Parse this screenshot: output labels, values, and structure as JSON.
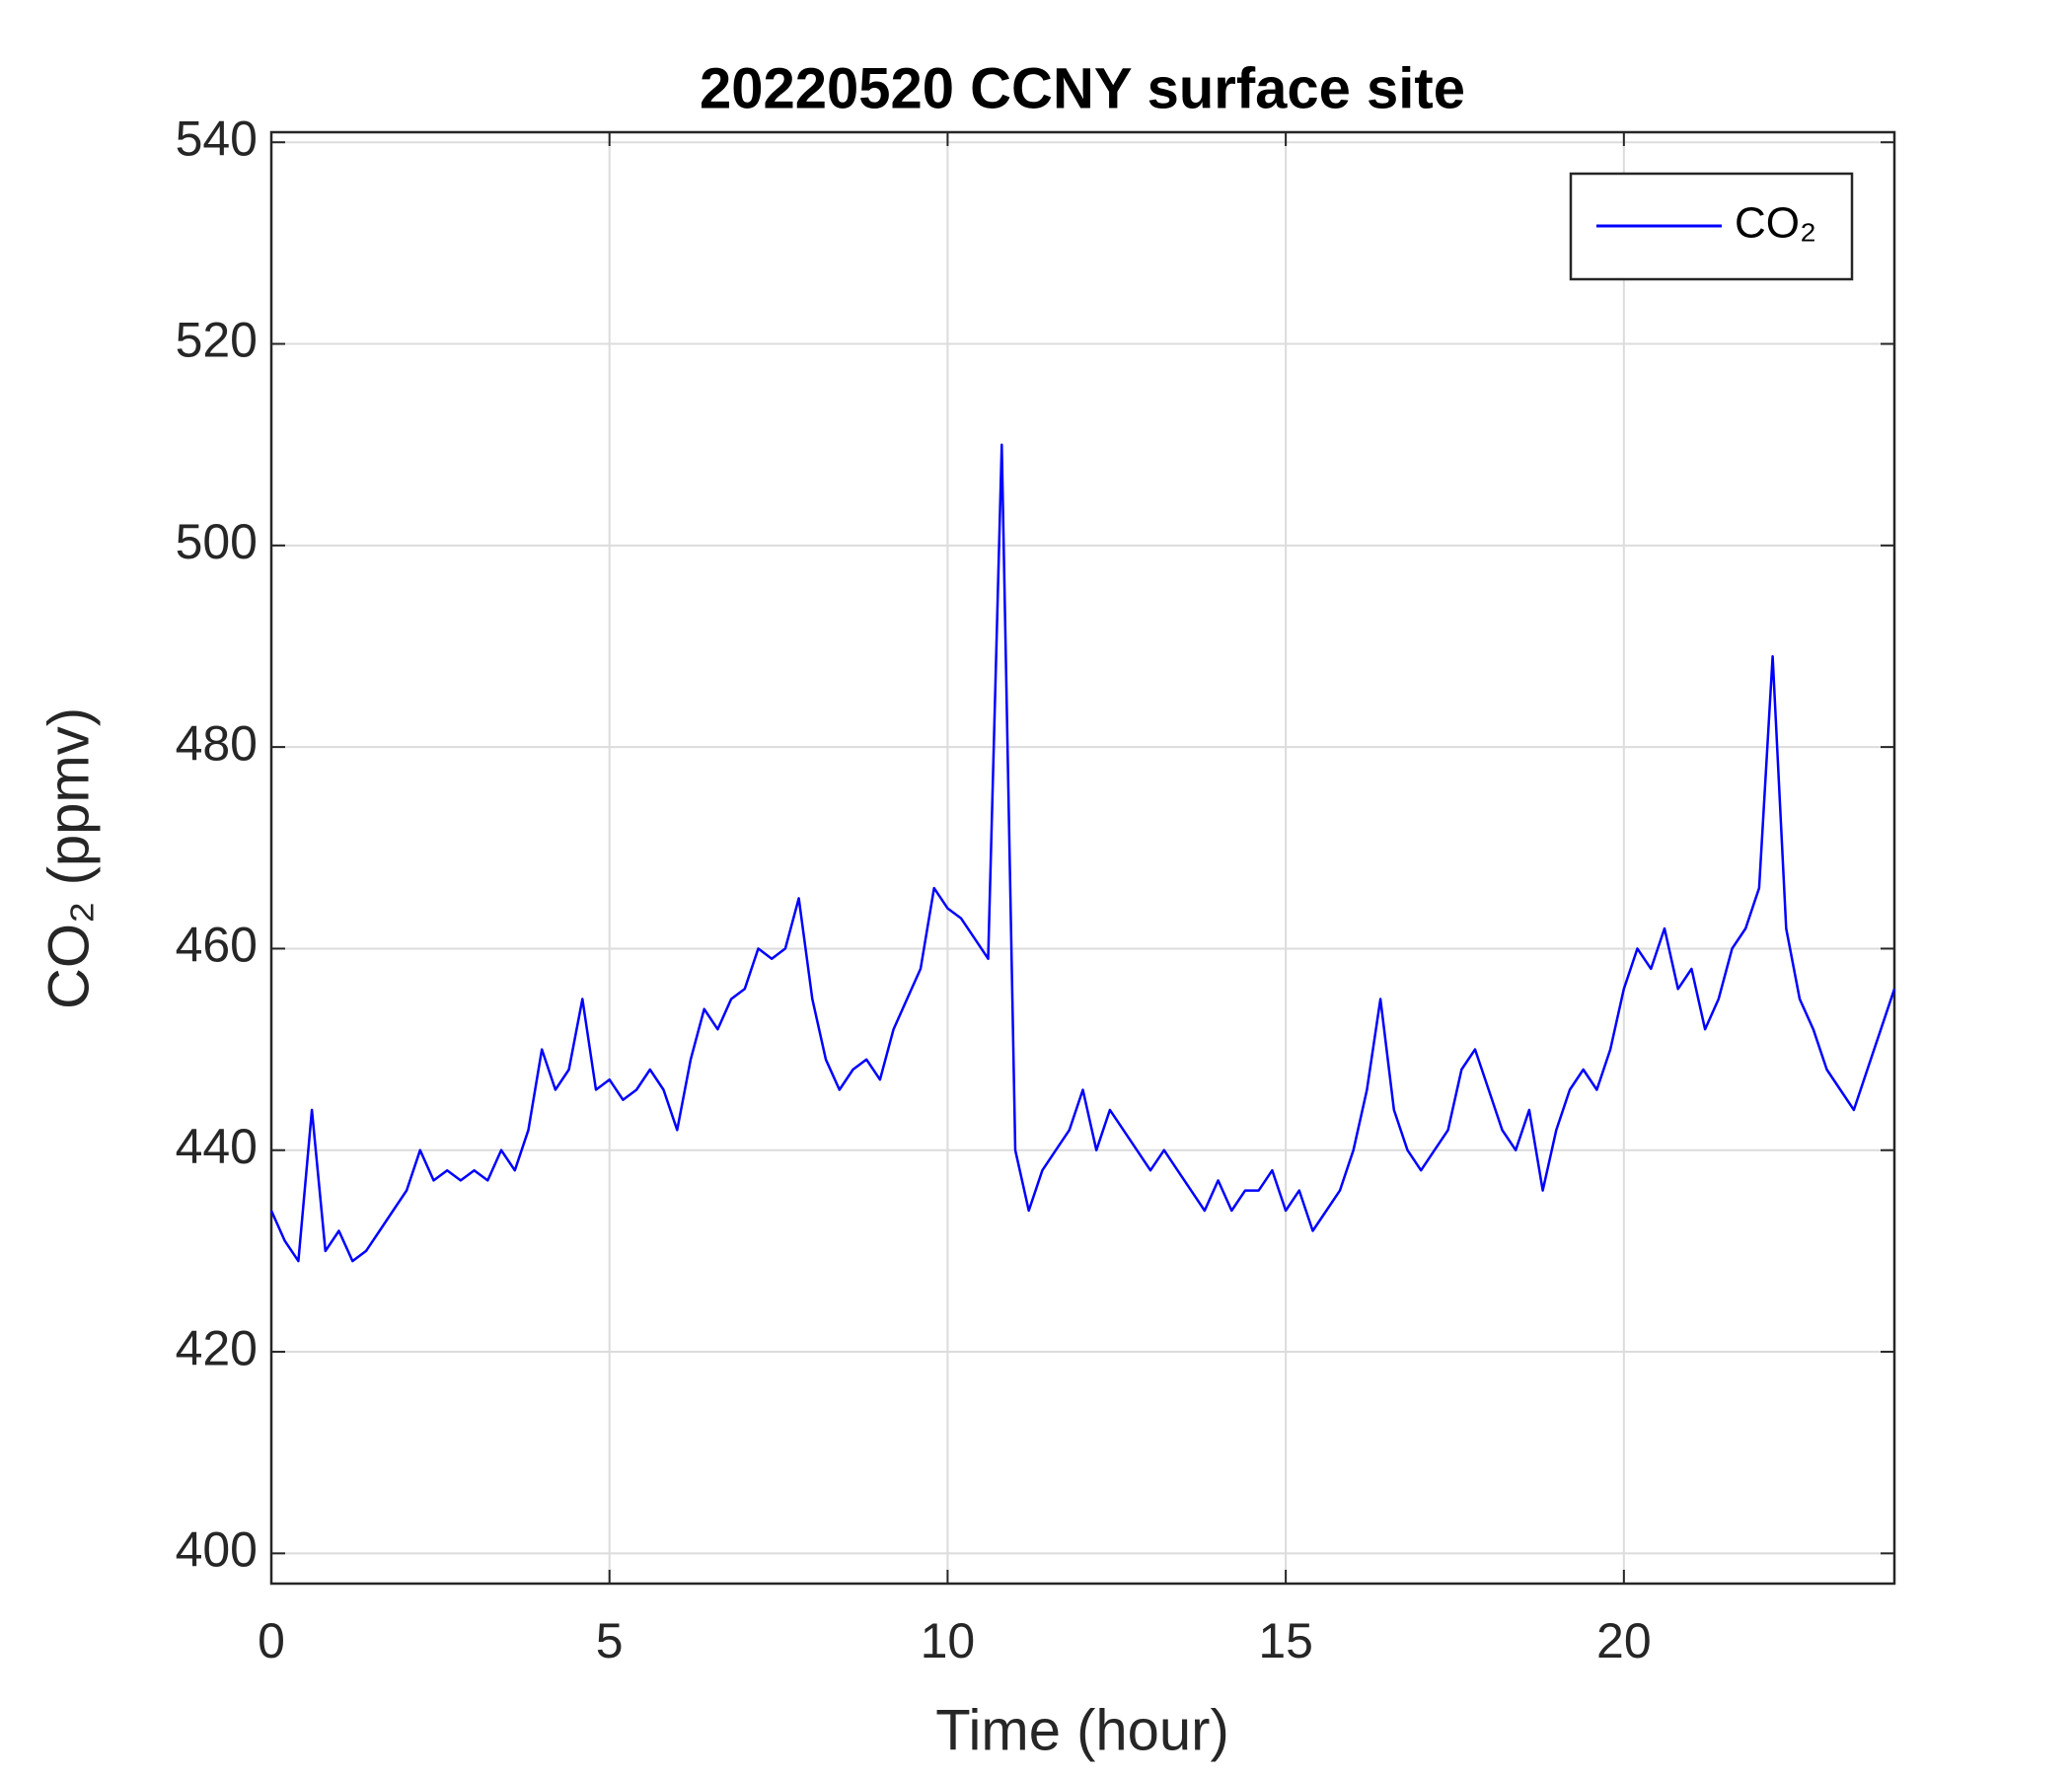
{
  "chart_data": {
    "type": "line",
    "title": "20220520 CCNY surface site",
    "x_label": "Time (hour)",
    "y_label": "CO₂ (ppmv)",
    "x": [
      0,
      0.2,
      0.4,
      0.6,
      0.8,
      1,
      1.2,
      1.4,
      1.6,
      1.8,
      2,
      2.2,
      2.4,
      2.6,
      2.8,
      3,
      3.2,
      3.4,
      3.6,
      3.8,
      4,
      4.2,
      4.4,
      4.6,
      4.8,
      5,
      5.2,
      5.4,
      5.6,
      5.8,
      6,
      6.2,
      6.4,
      6.6,
      6.8,
      7,
      7.2,
      7.4,
      7.6,
      7.8,
      8,
      8.2,
      8.4,
      8.6,
      8.8,
      9,
      9.2,
      9.4,
      9.6,
      9.8,
      10,
      10.2,
      10.4,
      10.6,
      10.8,
      11,
      11.2,
      11.4,
      11.6,
      11.8,
      12,
      12.2,
      12.4,
      12.6,
      12.8,
      13,
      13.2,
      13.4,
      13.6,
      13.8,
      14,
      14.2,
      14.4,
      14.6,
      14.8,
      15,
      15.2,
      15.4,
      15.6,
      15.8,
      16,
      16.2,
      16.4,
      16.6,
      16.8,
      17,
      17.2,
      17.4,
      17.6,
      17.8,
      18,
      18.2,
      18.4,
      18.6,
      18.8,
      19,
      19.2,
      19.4,
      19.6,
      19.8,
      20,
      20.2,
      20.4,
      20.6,
      20.8,
      21,
      21.2,
      21.4,
      21.6,
      21.8,
      22,
      22.2,
      22.4,
      22.6,
      22.8,
      23,
      23.2,
      23.4,
      23.6,
      23.8,
      24
    ],
    "series": [
      {
        "name": "CO₂",
        "color": "#0000ff",
        "values": [
          434,
          431,
          429,
          444,
          430,
          432,
          429,
          430,
          432,
          434,
          436,
          440,
          437,
          438,
          437,
          438,
          437,
          440,
          438,
          442,
          450,
          446,
          448,
          455,
          446,
          447,
          445,
          446,
          448,
          446,
          442,
          449,
          454,
          452,
          455,
          456,
          460,
          459,
          460,
          465,
          455,
          449,
          446,
          448,
          449,
          447,
          452,
          455,
          458,
          466,
          464,
          463,
          461,
          459,
          510,
          440,
          434,
          438,
          440,
          442,
          446,
          440,
          444,
          442,
          440,
          438,
          440,
          438,
          436,
          434,
          437,
          434,
          436,
          436,
          438,
          434,
          436,
          432,
          434,
          436,
          440,
          446,
          455,
          444,
          440,
          438,
          440,
          442,
          448,
          450,
          446,
          442,
          440,
          444,
          436,
          442,
          446,
          448,
          446,
          450,
          456,
          460,
          458,
          462,
          456,
          458,
          452,
          455,
          460,
          462,
          466,
          489,
          462,
          455,
          452,
          448,
          446,
          444,
          448,
          452,
          456
        ]
      }
    ],
    "xlim": [
      0,
      24
    ],
    "xticks": [
      0,
      5,
      10,
      15,
      20
    ],
    "ylim": [
      397,
      541
    ],
    "yticks": [
      400,
      420,
      440,
      460,
      480,
      500,
      520,
      540
    ],
    "grid": true,
    "legend": "northeast"
  }
}
